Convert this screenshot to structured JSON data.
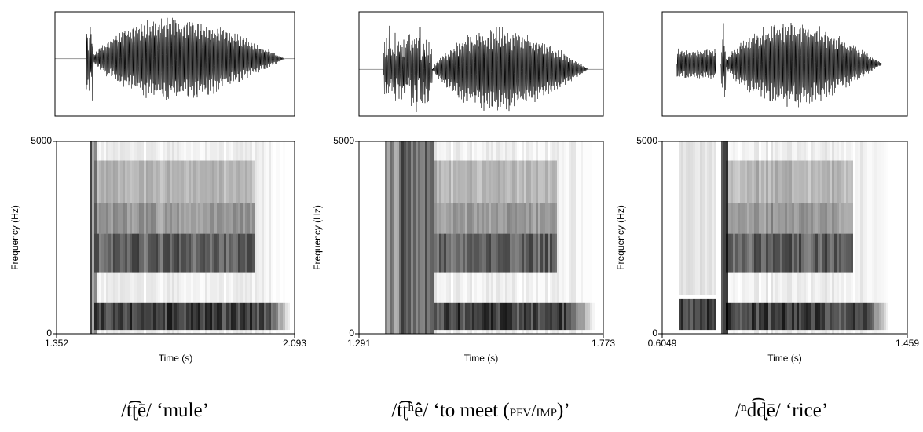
{
  "panels": [
    {
      "ylabel": "Frequency (Hz)",
      "xlabel": "Time (s)",
      "xlim": [
        1.352,
        2.093
      ],
      "ylim": [
        0,
        5000
      ],
      "xticks": [
        1.352,
        2.093
      ],
      "yticks": [
        0,
        5000
      ],
      "caption": {
        "text": "/t͡ʈ̩ē/ ‘mule’"
      }
    },
    {
      "ylabel": "Frequency (Hz)",
      "xlabel": "Time (s)",
      "xlim": [
        1.291,
        1.773
      ],
      "ylim": [
        0,
        5000
      ],
      "xticks": [
        1.291,
        1.773
      ],
      "yticks": [
        0,
        5000
      ],
      "caption": {
        "text": "/t͡ʈ̩ʰê/ ‘to meet (",
        "small_caps": "pfv/imp",
        "end": ")’"
      }
    },
    {
      "ylabel": "Frequency (Hz)",
      "xlabel": "Time (s)",
      "xlim": [
        0.6049,
        1.459
      ],
      "ylim": [
        0,
        5000
      ],
      "xticks": [
        0.6049,
        1.459
      ],
      "yticks": [
        0,
        5000
      ],
      "caption": {
        "text": "/ⁿd͡ɖ̩ē/ ‘rice’"
      }
    }
  ]
}
